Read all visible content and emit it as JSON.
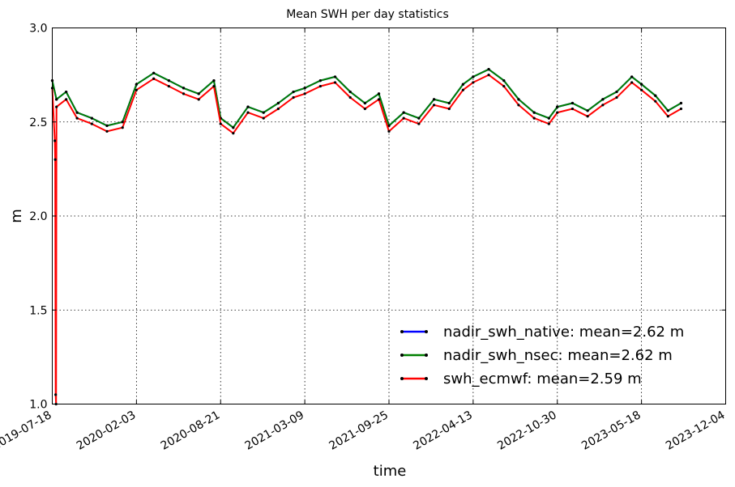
{
  "chart_data": {
    "type": "line",
    "title": "Mean SWH per day statistics",
    "xlabel": "time",
    "ylabel": "m",
    "ylim": [
      1.0,
      3.0
    ],
    "xlim": [
      "2019-07-18",
      "2023-12-04"
    ],
    "x_ticks": [
      "2019-07-18",
      "2020-02-03",
      "2020-08-21",
      "2021-03-09",
      "2021-09-25",
      "2022-04-13",
      "2022-10-30",
      "2023-05-18",
      "2023-12-04"
    ],
    "y_ticks": [
      "1.0",
      "1.5",
      "2.0",
      "2.5",
      "3.0"
    ],
    "grid": true,
    "legend_position": "lower-right",
    "series": [
      {
        "name": "nadir_swh_native",
        "legend_label": "nadir_swh_native: mean=2.62 m",
        "color": "#0000ff",
        "x": [
          "2019-07-18",
          "2019-07-28",
          "2019-08-20",
          "2019-09-15",
          "2019-10-20",
          "2019-11-25",
          "2020-01-01",
          "2020-02-03",
          "2020-03-15",
          "2020-04-20",
          "2020-05-25",
          "2020-06-30",
          "2020-08-05",
          "2020-08-21",
          "2020-09-20",
          "2020-10-25",
          "2020-12-01",
          "2021-01-05",
          "2021-02-10",
          "2021-03-09",
          "2021-04-15",
          "2021-05-20",
          "2021-06-25",
          "2021-07-30",
          "2021-09-01",
          "2021-09-25",
          "2021-10-30",
          "2021-12-05",
          "2022-01-10",
          "2022-02-15",
          "2022-03-20",
          "2022-04-13",
          "2022-05-20",
          "2022-06-25",
          "2022-07-30",
          "2022-09-05",
          "2022-10-10",
          "2022-10-30",
          "2022-12-05",
          "2023-01-10",
          "2023-02-15",
          "2023-03-20",
          "2023-04-25",
          "2023-05-18",
          "2023-06-20",
          "2023-07-20",
          "2023-08-20"
        ],
        "y": [
          2.72,
          2.62,
          2.66,
          2.55,
          2.52,
          2.48,
          2.5,
          2.7,
          2.76,
          2.72,
          2.68,
          2.65,
          2.72,
          2.52,
          2.47,
          2.58,
          2.55,
          2.6,
          2.66,
          2.68,
          2.72,
          2.74,
          2.66,
          2.6,
          2.65,
          2.48,
          2.55,
          2.52,
          2.62,
          2.6,
          2.7,
          2.74,
          2.78,
          2.72,
          2.62,
          2.55,
          2.52,
          2.58,
          2.6,
          2.56,
          2.62,
          2.66,
          2.74,
          2.7,
          2.64,
          2.56,
          2.6
        ]
      },
      {
        "name": "nadir_swh_nsec",
        "legend_label": "nadir_swh_nsec: mean=2.62 m",
        "color": "#007f00",
        "x": [
          "2019-07-18",
          "2019-07-28",
          "2019-08-20",
          "2019-09-15",
          "2019-10-20",
          "2019-11-25",
          "2020-01-01",
          "2020-02-03",
          "2020-03-15",
          "2020-04-20",
          "2020-05-25",
          "2020-06-30",
          "2020-08-05",
          "2020-08-21",
          "2020-09-20",
          "2020-10-25",
          "2020-12-01",
          "2021-01-05",
          "2021-02-10",
          "2021-03-09",
          "2021-04-15",
          "2021-05-20",
          "2021-06-25",
          "2021-07-30",
          "2021-09-01",
          "2021-09-25",
          "2021-10-30",
          "2021-12-05",
          "2022-01-10",
          "2022-02-15",
          "2022-03-20",
          "2022-04-13",
          "2022-05-20",
          "2022-06-25",
          "2022-07-30",
          "2022-09-05",
          "2022-10-10",
          "2022-10-30",
          "2022-12-05",
          "2023-01-10",
          "2023-02-15",
          "2023-03-20",
          "2023-04-25",
          "2023-05-18",
          "2023-06-20",
          "2023-07-20",
          "2023-08-20"
        ],
        "y": [
          2.72,
          2.62,
          2.66,
          2.55,
          2.52,
          2.48,
          2.5,
          2.7,
          2.76,
          2.72,
          2.68,
          2.65,
          2.72,
          2.52,
          2.47,
          2.58,
          2.55,
          2.6,
          2.66,
          2.68,
          2.72,
          2.74,
          2.66,
          2.6,
          2.65,
          2.48,
          2.55,
          2.52,
          2.62,
          2.6,
          2.7,
          2.74,
          2.78,
          2.72,
          2.62,
          2.55,
          2.52,
          2.58,
          2.6,
          2.56,
          2.62,
          2.66,
          2.74,
          2.7,
          2.64,
          2.56,
          2.6
        ]
      },
      {
        "name": "swh_ecmwf",
        "legend_label": "swh_ecmwf: mean=2.59 m",
        "color": "#ff0000",
        "x": [
          "2019-07-18",
          "2019-07-24",
          "2019-07-25",
          "2019-07-26",
          "2019-07-27",
          "2019-07-28",
          "2019-08-20",
          "2019-09-15",
          "2019-10-20",
          "2019-11-25",
          "2020-01-01",
          "2020-02-03",
          "2020-03-15",
          "2020-04-20",
          "2020-05-25",
          "2020-06-30",
          "2020-08-05",
          "2020-08-21",
          "2020-09-20",
          "2020-10-25",
          "2020-12-01",
          "2021-01-05",
          "2021-02-10",
          "2021-03-09",
          "2021-04-15",
          "2021-05-20",
          "2021-06-25",
          "2021-07-30",
          "2021-09-01",
          "2021-09-25",
          "2021-10-30",
          "2021-12-05",
          "2022-01-10",
          "2022-02-15",
          "2022-03-20",
          "2022-04-13",
          "2022-05-20",
          "2022-06-25",
          "2022-07-30",
          "2022-09-05",
          "2022-10-10",
          "2022-10-30",
          "2022-12-05",
          "2023-01-10",
          "2023-02-15",
          "2023-03-20",
          "2023-04-25",
          "2023-05-18",
          "2023-06-20",
          "2023-07-20",
          "2023-08-20"
        ],
        "y": [
          2.68,
          2.4,
          2.3,
          1.05,
          1.0,
          2.58,
          2.62,
          2.52,
          2.49,
          2.45,
          2.47,
          2.67,
          2.73,
          2.69,
          2.65,
          2.62,
          2.69,
          2.49,
          2.44,
          2.55,
          2.52,
          2.57,
          2.63,
          2.65,
          2.69,
          2.71,
          2.63,
          2.57,
          2.62,
          2.45,
          2.52,
          2.49,
          2.59,
          2.57,
          2.67,
          2.71,
          2.75,
          2.69,
          2.59,
          2.52,
          2.49,
          2.55,
          2.57,
          2.53,
          2.59,
          2.63,
          2.71,
          2.67,
          2.61,
          2.53,
          2.57
        ]
      }
    ]
  }
}
